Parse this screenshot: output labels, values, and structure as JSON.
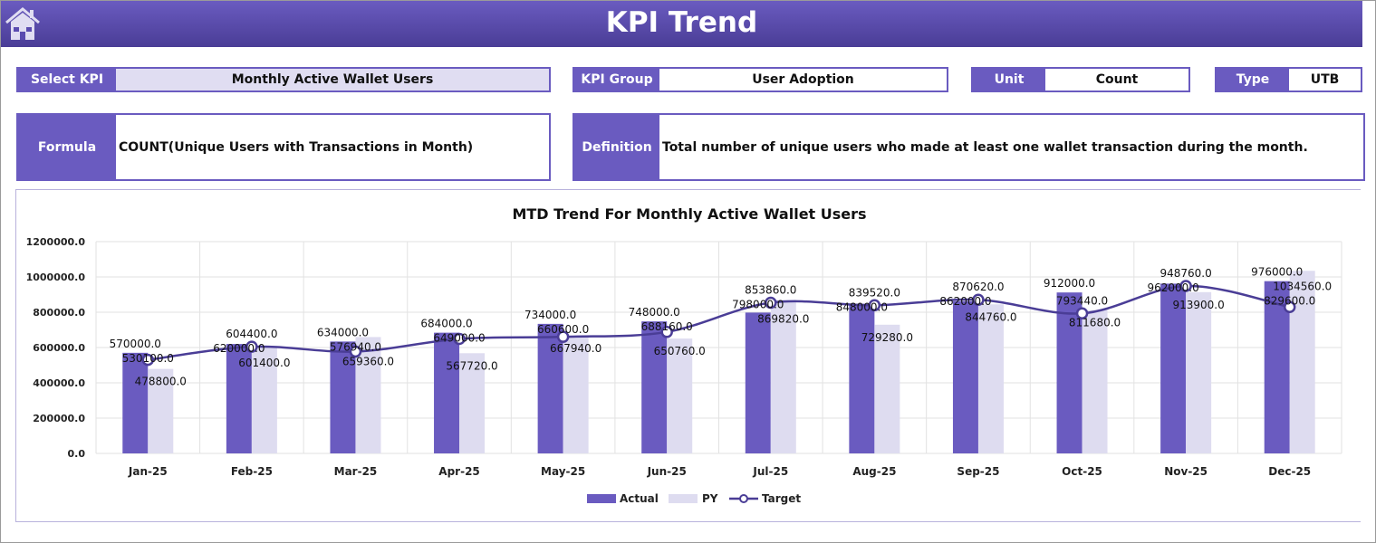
{
  "header": {
    "title": "KPI Trend",
    "home_icon": "home-icon"
  },
  "filters": {
    "select_kpi": {
      "label": "Select KPI",
      "value": "Monthly Active Wallet Users"
    },
    "kpi_group": {
      "label": "KPI Group",
      "value": "User Adoption"
    },
    "unit": {
      "label": "Unit",
      "value": "Count"
    },
    "type": {
      "label": "Type",
      "value": "UTB"
    }
  },
  "formula": {
    "label": "Formula",
    "value": "COUNT(Unique Users with Transactions in Month)"
  },
  "definition": {
    "label": "Definition",
    "value": "Total number of unique users who made at least one wallet transaction during the month."
  },
  "colors": {
    "actual": "#6a5bc0",
    "py": "#dedcf0",
    "target": "#4a3d96",
    "accent": "#6a5bc0"
  },
  "chart_data": {
    "type": "bar",
    "title": "MTD Trend For Monthly Active Wallet Users",
    "categories": [
      "Jan-25",
      "Feb-25",
      "Mar-25",
      "Apr-25",
      "May-25",
      "Jun-25",
      "Jul-25",
      "Aug-25",
      "Sep-25",
      "Oct-25",
      "Nov-25",
      "Dec-25"
    ],
    "ylim": [
      0,
      1200000
    ],
    "yticks": [
      "0.0",
      "200000.0",
      "400000.0",
      "600000.0",
      "800000.0",
      "1000000.0",
      "1200000.0"
    ],
    "grid": true,
    "legend_position": "bottom",
    "series": [
      {
        "name": "Actual",
        "type": "bar",
        "values": [
          570000,
          620000,
          634000,
          684000,
          734000,
          748000,
          798000,
          848000,
          862000,
          912000,
          962000,
          976000
        ]
      },
      {
        "name": "PY",
        "type": "bar",
        "values": [
          478800,
          601400,
          659360,
          567720,
          667940,
          650760,
          869820,
          729280,
          844760,
          811680,
          913900,
          1034560
        ]
      },
      {
        "name": "Target",
        "type": "line",
        "values": [
          530100,
          604400,
          576940,
          649000,
          660600,
          688160,
          853860,
          839520,
          870620,
          793440,
          948760,
          829600
        ]
      }
    ]
  }
}
